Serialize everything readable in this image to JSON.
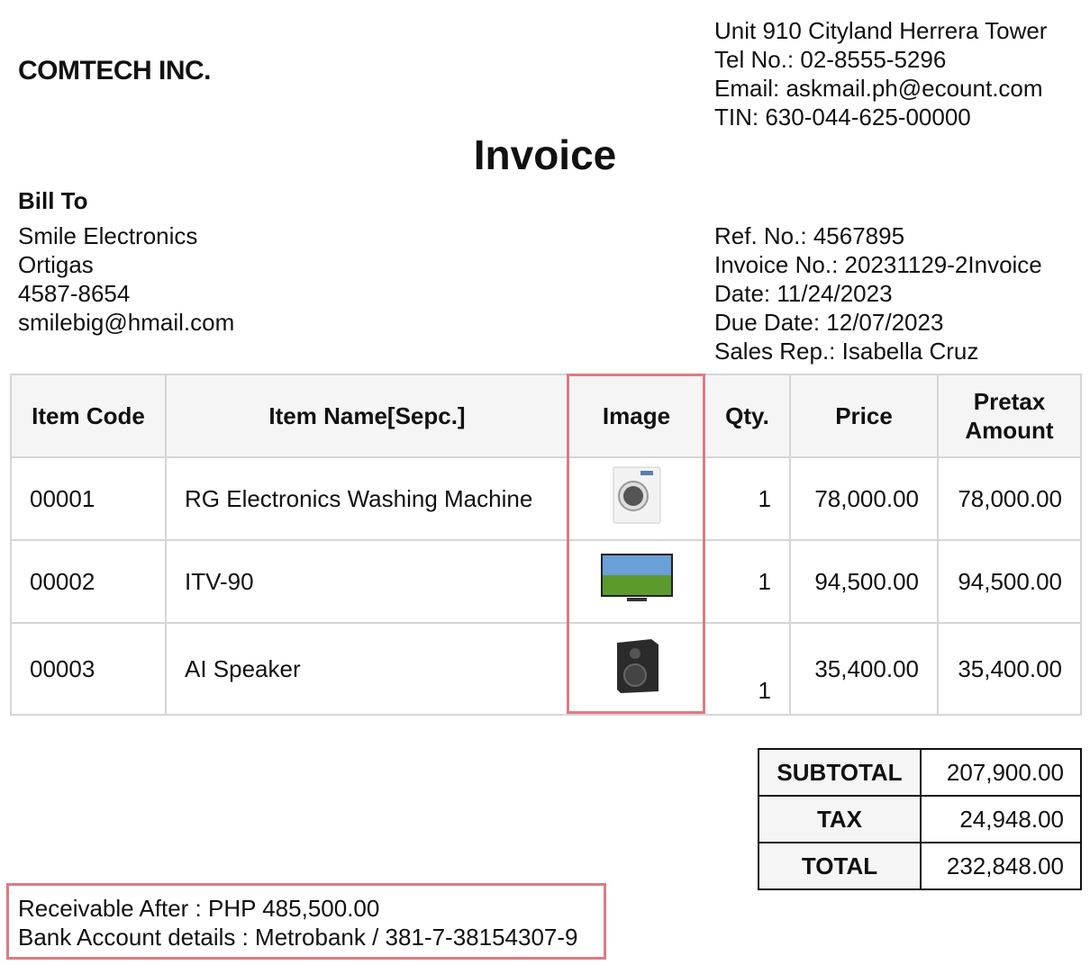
{
  "company": {
    "name": "COMTECH INC.",
    "address": "Unit 910 Cityland Herrera Tower",
    "tel": "Tel No.: 02-8555-5296",
    "email": "Email: askmail.ph@ecount.com",
    "tin": "TIN: 630-044-625-00000"
  },
  "title": "Invoice",
  "bill_to": {
    "label": "Bill To",
    "name": "Smile Electronics",
    "location": "Ortigas",
    "phone": "4587-8654",
    "email": "smilebig@hmail.com"
  },
  "meta": {
    "ref": "Ref. No.: 4567895",
    "invoice_no": "Invoice No.: 20231129-2Invoice",
    "date": "Date: 11/24/2023",
    "due_date": "Due Date: 12/07/2023",
    "sales_rep": "Sales Rep.: Isabella Cruz"
  },
  "table": {
    "headers": [
      "Item Code",
      "Item Name[Sepc.]",
      "Image",
      "Qty.",
      "Price",
      "Pretax Amount"
    ],
    "rows": [
      {
        "code": "00001",
        "name": "RG Electronics Washing Machine",
        "image": "washing-machine",
        "qty": "1",
        "price": "78,000.00",
        "amount": "78,000.00"
      },
      {
        "code": "00002",
        "name": "ITV-90",
        "image": "television",
        "qty": "1",
        "price": "94,500.00",
        "amount": "94,500.00"
      },
      {
        "code": "00003",
        "name": "AI Speaker",
        "image": "speaker",
        "qty": "1",
        "price": "35,400.00",
        "amount": "35,400.00"
      }
    ]
  },
  "totals": {
    "subtotal_label": "SUBTOTAL",
    "subtotal": "207,900.00",
    "tax_label": "TAX",
    "tax": "24,948.00",
    "total_label": "TOTAL",
    "total": "232,848.00"
  },
  "footer": {
    "receivable": "Receivable After : PHP 485,500.00",
    "bank": "Bank Account details : Metrobank / 381-7-38154307-9"
  },
  "colors": {
    "highlight": "#de7a82",
    "header_bg": "#f5f5f5",
    "grid": "#d6d6d6"
  }
}
